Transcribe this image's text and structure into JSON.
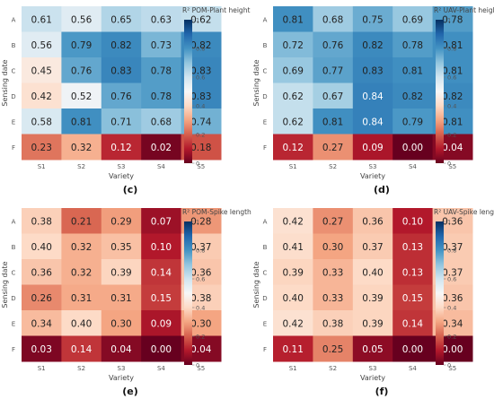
{
  "chart_data": [
    {
      "type": "heatmap",
      "panel_label": "(c)",
      "colorbar_title": "R² POM-Plant height",
      "xlabel": "Variety",
      "ylabel": "Sensing date",
      "categories": [
        "S1",
        "S2",
        "S3",
        "S4",
        "S5"
      ],
      "rows": [
        "A",
        "B",
        "C",
        "D",
        "E",
        "F"
      ],
      "values": [
        [
          0.61,
          0.56,
          0.65,
          0.63,
          0.62
        ],
        [
          0.56,
          0.79,
          0.82,
          0.73,
          0.82
        ],
        [
          0.45,
          0.76,
          0.83,
          0.78,
          0.83
        ],
        [
          0.42,
          0.52,
          0.76,
          0.78,
          0.83
        ],
        [
          0.58,
          0.81,
          0.71,
          0.68,
          0.74
        ],
        [
          0.23,
          0.32,
          0.12,
          0.02,
          0.18
        ]
      ],
      "value_labels": [
        [
          "0.61",
          "0.56",
          "0.65",
          "0.63",
          "0.62"
        ],
        [
          "0.56",
          "0.79",
          "0.82",
          "0.73",
          "0.82"
        ],
        [
          "0.45",
          "0.76",
          "0.83",
          "0.78",
          "0.83"
        ],
        [
          "0.42",
          "0.52",
          "0.76",
          "0.78",
          "0.83"
        ],
        [
          "0.58",
          "0.81",
          "0.71",
          "0.68",
          "0.74"
        ],
        [
          "0.23",
          "0.32",
          "0.12",
          "0.02",
          "0.18"
        ]
      ],
      "colorbar_ticks": [
        "0",
        "0.2",
        "0.4",
        "0.6",
        "0.8",
        "1"
      ],
      "colorbar_range": [
        0,
        1
      ]
    },
    {
      "type": "heatmap",
      "panel_label": "(d)",
      "colorbar_title": "R² UAV-Plant height",
      "xlabel": "Variety",
      "ylabel": "Sensing date",
      "categories": [
        "S1",
        "S2",
        "S3",
        "S4",
        "S5"
      ],
      "rows": [
        "A",
        "B",
        "C",
        "D",
        "E",
        "F"
      ],
      "values": [
        [
          0.81,
          0.68,
          0.75,
          0.69,
          0.78
        ],
        [
          0.72,
          0.76,
          0.82,
          0.78,
          0.81
        ],
        [
          0.69,
          0.77,
          0.83,
          0.81,
          0.81
        ],
        [
          0.62,
          0.67,
          0.84,
          0.82,
          0.82
        ],
        [
          0.62,
          0.81,
          0.84,
          0.79,
          0.81
        ],
        [
          0.12,
          0.27,
          0.09,
          0.0,
          0.04
        ]
      ],
      "value_labels": [
        [
          "0.81",
          "0.68",
          "0.75",
          "0.69",
          "0.78"
        ],
        [
          "0.72",
          "0.76",
          "0.82",
          "0.78",
          "0.81"
        ],
        [
          "0.69",
          "0.77",
          "0.83",
          "0.81",
          "0.81"
        ],
        [
          "0.62",
          "0.67",
          "0.84",
          "0.82",
          "0.82"
        ],
        [
          "0.62",
          "0.81",
          "0.84",
          "0.79",
          "0.81"
        ],
        [
          "0.12",
          "0.27",
          "0.09",
          "0.00",
          "0.04"
        ]
      ],
      "colorbar_ticks": [
        "0",
        "0.2",
        "0.4",
        "0.6",
        "0.8",
        "1"
      ],
      "colorbar_range": [
        0,
        1
      ]
    },
    {
      "type": "heatmap",
      "panel_label": "(e)",
      "colorbar_title": "R² POM-Spike length",
      "xlabel": "Variety",
      "ylabel": "Sensing date",
      "categories": [
        "S1",
        "S2",
        "S3",
        "S4",
        "S5"
      ],
      "rows": [
        "A",
        "B",
        "C",
        "D",
        "E",
        "F"
      ],
      "values": [
        [
          0.38,
          0.21,
          0.29,
          0.07,
          0.28
        ],
        [
          0.4,
          0.32,
          0.35,
          0.1,
          0.37
        ],
        [
          0.36,
          0.32,
          0.39,
          0.14,
          0.36
        ],
        [
          0.26,
          0.31,
          0.31,
          0.15,
          0.38
        ],
        [
          0.34,
          0.4,
          0.3,
          0.09,
          0.3
        ],
        [
          0.03,
          0.14,
          0.04,
          0.0,
          0.04
        ]
      ],
      "value_labels": [
        [
          "0.38",
          "0.21",
          "0.29",
          "0.07",
          "0.28"
        ],
        [
          "0.40",
          "0.32",
          "0.35",
          "0.10",
          "0.37"
        ],
        [
          "0.36",
          "0.32",
          "0.39",
          "0.14",
          "0.36"
        ],
        [
          "0.26",
          "0.31",
          "0.31",
          "0.15",
          "0.38"
        ],
        [
          "0.34",
          "0.40",
          "0.30",
          "0.09",
          "0.30"
        ],
        [
          "0.03",
          "0.14",
          "0.04",
          "0.00",
          "0.04"
        ]
      ],
      "colorbar_ticks": [
        "0",
        "0.2",
        "0.4",
        "0.6",
        "0.8",
        "1"
      ],
      "colorbar_range": [
        0,
        1
      ]
    },
    {
      "type": "heatmap",
      "panel_label": "(f)",
      "colorbar_title": "R² UAV-Spike length",
      "xlabel": "Variety",
      "ylabel": "Sensing date",
      "categories": [
        "S1",
        "S2",
        "S3",
        "S4",
        "S5"
      ],
      "rows": [
        "A",
        "B",
        "C",
        "D",
        "E",
        "F"
      ],
      "values": [
        [
          0.42,
          0.27,
          0.36,
          0.1,
          0.36
        ],
        [
          0.41,
          0.3,
          0.37,
          0.13,
          0.37
        ],
        [
          0.39,
          0.33,
          0.4,
          0.13,
          0.37
        ],
        [
          0.4,
          0.33,
          0.39,
          0.15,
          0.36
        ],
        [
          0.42,
          0.38,
          0.39,
          0.14,
          0.34
        ],
        [
          0.11,
          0.25,
          0.05,
          0.0,
          0.0
        ]
      ],
      "value_labels": [
        [
          "0.42",
          "0.27",
          "0.36",
          "0.10",
          "0.36"
        ],
        [
          "0.41",
          "0.30",
          "0.37",
          "0.13",
          "0.37"
        ],
        [
          "0.39",
          "0.33",
          "0.40",
          "0.13",
          "0.37"
        ],
        [
          "0.40",
          "0.33",
          "0.39",
          "0.15",
          "0.36"
        ],
        [
          "0.42",
          "0.38",
          "0.39",
          "0.14",
          "0.34"
        ],
        [
          "0.11",
          "0.25",
          "0.05",
          "0.00",
          "0.00"
        ]
      ],
      "colorbar_ticks": [
        "0",
        "0.2",
        "0.4",
        "0.6",
        "0.8",
        "1"
      ],
      "colorbar_range": [
        0,
        1
      ]
    }
  ],
  "colorscale": {
    "name": "RdBu",
    "stops": [
      [
        0.0,
        "#67001f"
      ],
      [
        0.1,
        "#b2182b"
      ],
      [
        0.2,
        "#d6604d"
      ],
      [
        0.3,
        "#f4a582"
      ],
      [
        0.4,
        "#fddbc7"
      ],
      [
        0.5,
        "#f7f7f7"
      ],
      [
        0.6,
        "#d1e5f0"
      ],
      [
        0.7,
        "#92c5de"
      ],
      [
        0.8,
        "#4393c3"
      ],
      [
        0.9,
        "#2166ac"
      ],
      [
        1.0,
        "#053061"
      ]
    ]
  }
}
